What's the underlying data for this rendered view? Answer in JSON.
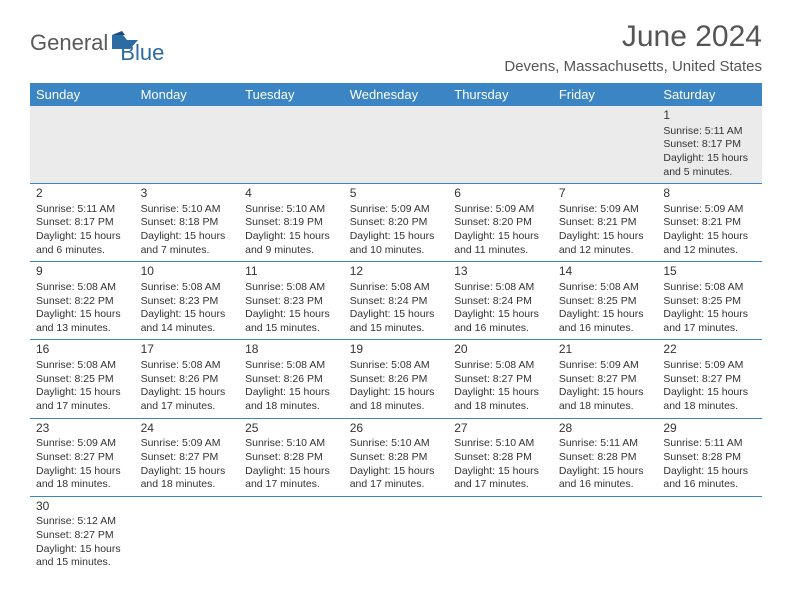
{
  "logo": {
    "text1": "General",
    "text2": "Blue"
  },
  "title": "June 2024",
  "location": "Devens, Massachusetts, United States",
  "colors": {
    "header_bg": "#3b85c4",
    "header_text": "#ffffff",
    "first_week_bg": "#ebebeb",
    "cell_border": "#3b85c4",
    "title_color": "#555555",
    "body_text": "#333333",
    "logo_gray": "#5a5a5a",
    "logo_blue": "#2d6ca2"
  },
  "day_headers": [
    "Sunday",
    "Monday",
    "Tuesday",
    "Wednesday",
    "Thursday",
    "Friday",
    "Saturday"
  ],
  "weeks": [
    [
      null,
      null,
      null,
      null,
      null,
      null,
      {
        "n": "1",
        "sr": "5:11 AM",
        "ss": "8:17 PM",
        "dl": "15 hours and 5 minutes."
      }
    ],
    [
      {
        "n": "2",
        "sr": "5:11 AM",
        "ss": "8:17 PM",
        "dl": "15 hours and 6 minutes."
      },
      {
        "n": "3",
        "sr": "5:10 AM",
        "ss": "8:18 PM",
        "dl": "15 hours and 7 minutes."
      },
      {
        "n": "4",
        "sr": "5:10 AM",
        "ss": "8:19 PM",
        "dl": "15 hours and 9 minutes."
      },
      {
        "n": "5",
        "sr": "5:09 AM",
        "ss": "8:20 PM",
        "dl": "15 hours and 10 minutes."
      },
      {
        "n": "6",
        "sr": "5:09 AM",
        "ss": "8:20 PM",
        "dl": "15 hours and 11 minutes."
      },
      {
        "n": "7",
        "sr": "5:09 AM",
        "ss": "8:21 PM",
        "dl": "15 hours and 12 minutes."
      },
      {
        "n": "8",
        "sr": "5:09 AM",
        "ss": "8:21 PM",
        "dl": "15 hours and 12 minutes."
      }
    ],
    [
      {
        "n": "9",
        "sr": "5:08 AM",
        "ss": "8:22 PM",
        "dl": "15 hours and 13 minutes."
      },
      {
        "n": "10",
        "sr": "5:08 AM",
        "ss": "8:23 PM",
        "dl": "15 hours and 14 minutes."
      },
      {
        "n": "11",
        "sr": "5:08 AM",
        "ss": "8:23 PM",
        "dl": "15 hours and 15 minutes."
      },
      {
        "n": "12",
        "sr": "5:08 AM",
        "ss": "8:24 PM",
        "dl": "15 hours and 15 minutes."
      },
      {
        "n": "13",
        "sr": "5:08 AM",
        "ss": "8:24 PM",
        "dl": "15 hours and 16 minutes."
      },
      {
        "n": "14",
        "sr": "5:08 AM",
        "ss": "8:25 PM",
        "dl": "15 hours and 16 minutes."
      },
      {
        "n": "15",
        "sr": "5:08 AM",
        "ss": "8:25 PM",
        "dl": "15 hours and 17 minutes."
      }
    ],
    [
      {
        "n": "16",
        "sr": "5:08 AM",
        "ss": "8:25 PM",
        "dl": "15 hours and 17 minutes."
      },
      {
        "n": "17",
        "sr": "5:08 AM",
        "ss": "8:26 PM",
        "dl": "15 hours and 17 minutes."
      },
      {
        "n": "18",
        "sr": "5:08 AM",
        "ss": "8:26 PM",
        "dl": "15 hours and 18 minutes."
      },
      {
        "n": "19",
        "sr": "5:08 AM",
        "ss": "8:26 PM",
        "dl": "15 hours and 18 minutes."
      },
      {
        "n": "20",
        "sr": "5:08 AM",
        "ss": "8:27 PM",
        "dl": "15 hours and 18 minutes."
      },
      {
        "n": "21",
        "sr": "5:09 AM",
        "ss": "8:27 PM",
        "dl": "15 hours and 18 minutes."
      },
      {
        "n": "22",
        "sr": "5:09 AM",
        "ss": "8:27 PM",
        "dl": "15 hours and 18 minutes."
      }
    ],
    [
      {
        "n": "23",
        "sr": "5:09 AM",
        "ss": "8:27 PM",
        "dl": "15 hours and 18 minutes."
      },
      {
        "n": "24",
        "sr": "5:09 AM",
        "ss": "8:27 PM",
        "dl": "15 hours and 18 minutes."
      },
      {
        "n": "25",
        "sr": "5:10 AM",
        "ss": "8:28 PM",
        "dl": "15 hours and 17 minutes."
      },
      {
        "n": "26",
        "sr": "5:10 AM",
        "ss": "8:28 PM",
        "dl": "15 hours and 17 minutes."
      },
      {
        "n": "27",
        "sr": "5:10 AM",
        "ss": "8:28 PM",
        "dl": "15 hours and 17 minutes."
      },
      {
        "n": "28",
        "sr": "5:11 AM",
        "ss": "8:28 PM",
        "dl": "15 hours and 16 minutes."
      },
      {
        "n": "29",
        "sr": "5:11 AM",
        "ss": "8:28 PM",
        "dl": "15 hours and 16 minutes."
      }
    ],
    [
      {
        "n": "30",
        "sr": "5:12 AM",
        "ss": "8:27 PM",
        "dl": "15 hours and 15 minutes."
      },
      null,
      null,
      null,
      null,
      null,
      null
    ]
  ],
  "labels": {
    "sunrise": "Sunrise: ",
    "sunset": "Sunset: ",
    "daylight": "Daylight: "
  }
}
